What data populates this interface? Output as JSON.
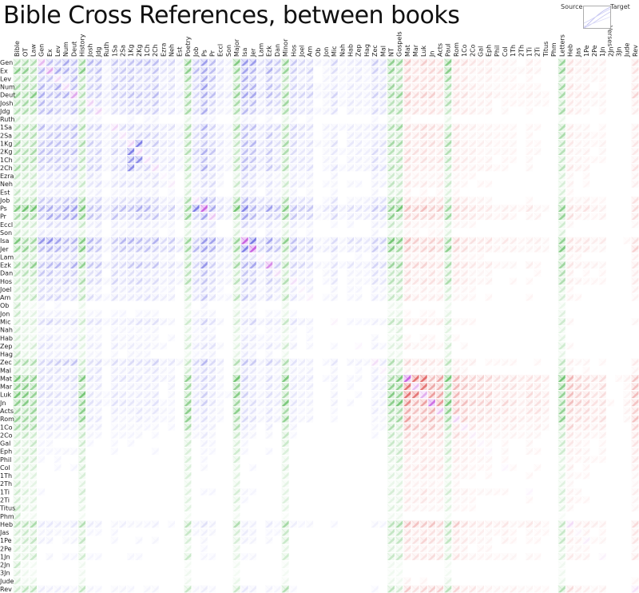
{
  "chart_data": {
    "type": "heatmap",
    "title": "Bible Cross References, between books",
    "legend": {
      "source": "Source",
      "target": "Target",
      "verses": "Verses"
    },
    "column_labels": [
      "Bible",
      "OT",
      "Law",
      "Gen",
      "Ex",
      "Lev",
      "Num",
      "Deut",
      "History",
      "Josh",
      "Jdg",
      "Ruth",
      "1Sa",
      "2Sa",
      "1Kg",
      "2Kg",
      "1Ch",
      "2Ch",
      "Ezra",
      "Neh",
      "Est",
      "Poetry",
      "Job",
      "Ps",
      "Pr",
      "Eccl",
      "Son",
      "Major",
      "Isa",
      "Jer",
      "Lam",
      "Ezk",
      "Dan",
      "Minor",
      "Hos",
      "Joel",
      "Am",
      "Ob",
      "Jon",
      "Mic",
      "Nah",
      "Hab",
      "Zep",
      "Hag",
      "Zec",
      "Mal",
      "NT",
      "Gospels",
      "Mat",
      "Mar",
      "Luk",
      "Jn",
      "Acts",
      "Paul",
      "Rom",
      "1Co",
      "2Co",
      "Gal",
      "Eph",
      "Phil",
      "Col",
      "1Th",
      "2Th",
      "1Ti",
      "2Ti",
      "Titus",
      "Phm",
      "Letters",
      "Heb",
      "Jas",
      "1Pe",
      "2Pe",
      "1Jn",
      "2Jn",
      "3Jn",
      "Jude",
      "Rev"
    ],
    "group_columns": [
      "Bible",
      "OT",
      "Law",
      "History",
      "Poetry",
      "Major",
      "Minor",
      "NT",
      "Gospels",
      "Paul",
      "Letters"
    ],
    "row_labels": [
      "Gen",
      "Ex",
      "Lev",
      "Num",
      "Deut",
      "Josh",
      "Jdg",
      "Ruth",
      "1Sa",
      "2Sa",
      "1Kg",
      "2Kg",
      "1Ch",
      "2Ch",
      "Ezra",
      "Neh",
      "Est",
      "Job",
      "Ps",
      "Pr",
      "Eccl",
      "Son",
      "Isa",
      "Jer",
      "Lam",
      "Ezk",
      "Dan",
      "Hos",
      "Joel",
      "Am",
      "Ob",
      "Jon",
      "Mic",
      "Nah",
      "Hab",
      "Zep",
      "Hag",
      "Zec",
      "Mal",
      "Mat",
      "Mar",
      "Luk",
      "Jn",
      "Acts",
      "Rom",
      "1Co",
      "2Co",
      "Gal",
      "Eph",
      "Phil",
      "Col",
      "1Th",
      "2Th",
      "1Ti",
      "2Ti",
      "Titus",
      "Phm",
      "Heb",
      "Jas",
      "1Pe",
      "2Pe",
      "1Jn",
      "2Jn",
      "3Jn",
      "Jude",
      "Rev"
    ],
    "row_weights": [
      0.85,
      0.8,
      0.6,
      0.65,
      0.8,
      0.6,
      0.55,
      0.15,
      0.6,
      0.55,
      0.6,
      0.55,
      0.5,
      0.55,
      0.3,
      0.35,
      0.2,
      0.55,
      1.0,
      0.75,
      0.3,
      0.2,
      1.0,
      0.85,
      0.35,
      0.75,
      0.45,
      0.5,
      0.3,
      0.4,
      0.1,
      0.15,
      0.35,
      0.15,
      0.2,
      0.25,
      0.15,
      0.5,
      0.3,
      1.0,
      0.85,
      0.9,
      0.95,
      0.8,
      0.75,
      0.55,
      0.4,
      0.3,
      0.3,
      0.25,
      0.25,
      0.2,
      0.15,
      0.25,
      0.2,
      0.15,
      0.05,
      0.6,
      0.35,
      0.35,
      0.2,
      0.3,
      0.05,
      0.05,
      0.1,
      0.45
    ],
    "col_weights": [
      1,
      1,
      0.8,
      0.7,
      0.7,
      0.6,
      0.6,
      0.7,
      0.8,
      0.5,
      0.5,
      0.15,
      0.5,
      0.45,
      0.5,
      0.5,
      0.45,
      0.5,
      0.25,
      0.3,
      0.15,
      0.8,
      0.5,
      0.9,
      0.6,
      0.25,
      0.15,
      0.8,
      0.85,
      0.7,
      0.3,
      0.6,
      0.4,
      0.6,
      0.45,
      0.3,
      0.35,
      0.1,
      0.15,
      0.3,
      0.1,
      0.2,
      0.2,
      0.15,
      0.4,
      0.3,
      0.8,
      0.8,
      0.85,
      0.6,
      0.7,
      0.65,
      0.6,
      0.6,
      0.55,
      0.45,
      0.35,
      0.3,
      0.3,
      0.2,
      0.25,
      0.2,
      0.15,
      0.25,
      0.2,
      0.15,
      0.05,
      0.5,
      0.45,
      0.3,
      0.3,
      0.2,
      0.25,
      0.05,
      0.05,
      0.1,
      0.55
    ],
    "hot_cells": [
      [
        18,
        23,
        1.0
      ],
      [
        18,
        22,
        0.8
      ],
      [
        22,
        28,
        1.0
      ],
      [
        22,
        29,
        0.85
      ],
      [
        23,
        28,
        0.8
      ],
      [
        23,
        29,
        1.0
      ],
      [
        25,
        31,
        0.7
      ],
      [
        39,
        48,
        1.0
      ],
      [
        39,
        49,
        0.9
      ],
      [
        39,
        50,
        0.95
      ],
      [
        40,
        48,
        0.9
      ],
      [
        40,
        50,
        0.85
      ],
      [
        41,
        48,
        0.9
      ],
      [
        41,
        49,
        0.85
      ],
      [
        42,
        51,
        0.9
      ],
      [
        42,
        52,
        0.6
      ],
      [
        12,
        14,
        0.6
      ],
      [
        12,
        15,
        0.7
      ],
      [
        13,
        14,
        0.7
      ],
      [
        10,
        15,
        0.8
      ],
      [
        11,
        14,
        0.8
      ],
      [
        1,
        5,
        0.5
      ],
      [
        3,
        5,
        0.5
      ],
      [
        4,
        5,
        0.4
      ]
    ],
    "colors": {
      "ot": "#2a2ad6",
      "nt": "#d62a2a",
      "group": "#2fa82f",
      "self": "#b42ad6"
    }
  }
}
